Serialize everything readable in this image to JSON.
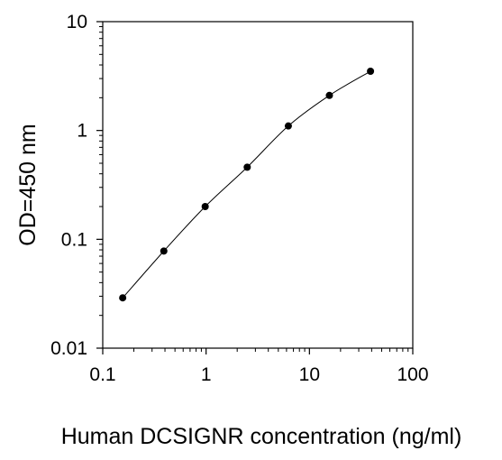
{
  "chart_data": {
    "type": "line",
    "title": "",
    "xlabel": "Human DCSIGNR concentration (ng/ml)",
    "ylabel": "OD=450 nm",
    "x_scale": "log",
    "y_scale": "log",
    "xlim": [
      0.1,
      100
    ],
    "ylim": [
      0.01,
      10
    ],
    "x_ticks": [
      "0.1",
      "1",
      "10",
      "100"
    ],
    "y_ticks": [
      "0.01",
      "0.1",
      "1",
      "10"
    ],
    "grid": false,
    "legend": "none",
    "marker": "filled-circle",
    "line_color": "#000000",
    "series": [
      {
        "x": [
          0.156,
          0.39,
          0.98,
          2.5,
          6.25,
          15.6,
          39
        ],
        "y": [
          0.029,
          0.078,
          0.2,
          0.46,
          1.1,
          2.1,
          3.5
        ]
      }
    ]
  }
}
